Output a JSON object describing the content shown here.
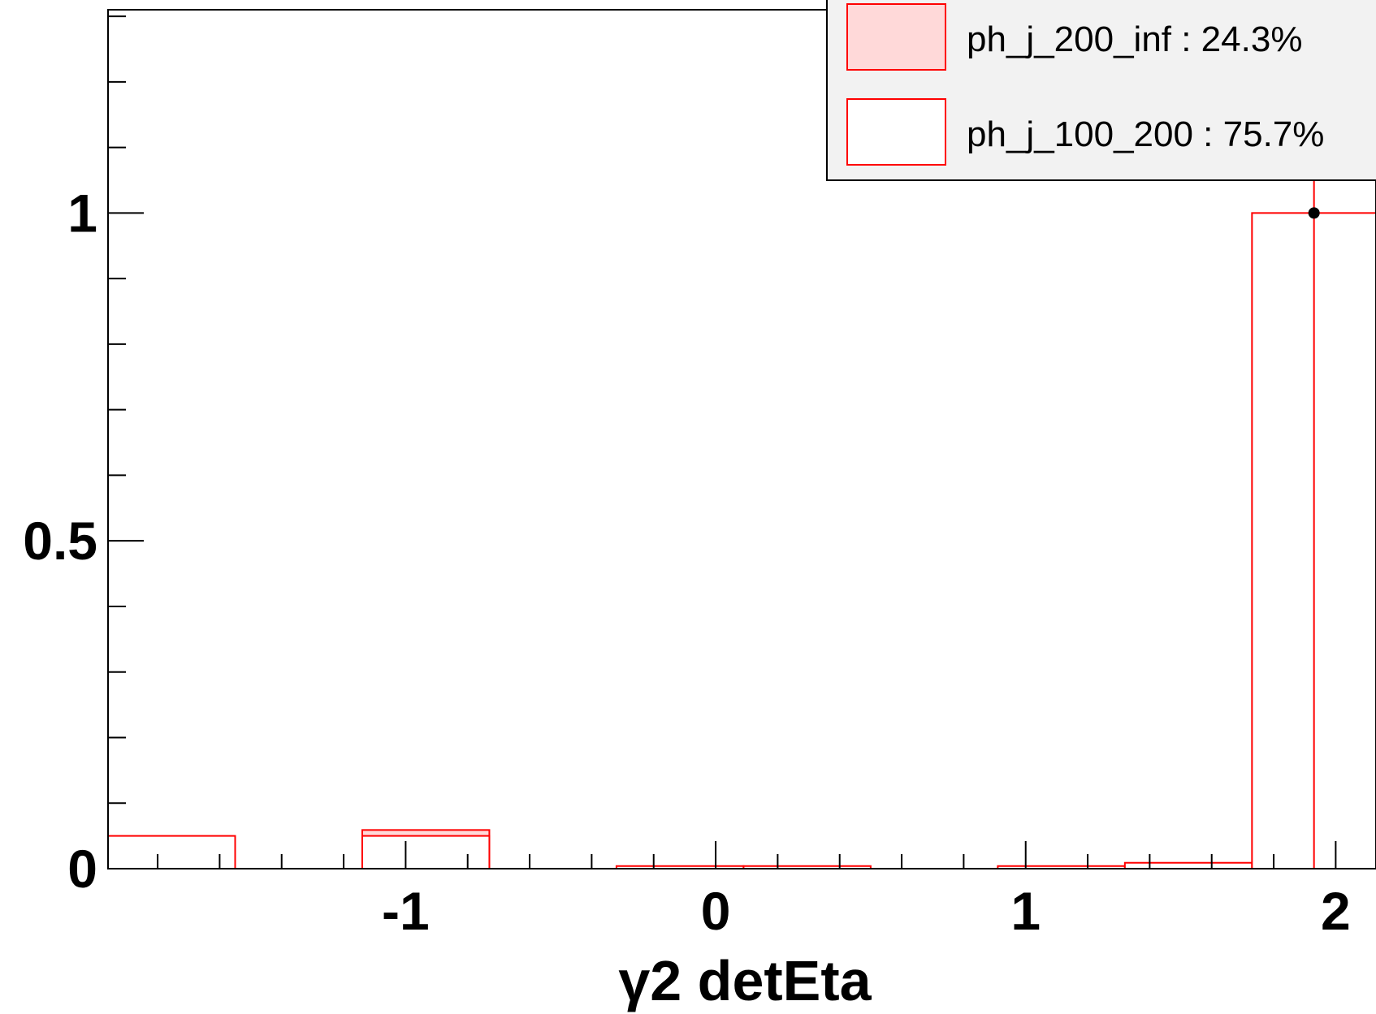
{
  "chart_data": {
    "type": "bar",
    "title": "",
    "xlabel": "γ2 detEta",
    "ylabel": "",
    "xlim": [
      -1.96,
      2.13
    ],
    "ylim": [
      0,
      1.31
    ],
    "x_ticks": [
      {
        "value": -1,
        "label": "-1"
      },
      {
        "value": 0,
        "label": "0"
      },
      {
        "value": 1,
        "label": "1"
      },
      {
        "value": 2,
        "label": "2"
      }
    ],
    "y_ticks": [
      {
        "value": 0,
        "label": "0"
      },
      {
        "value": 0.5,
        "label": "0.5"
      },
      {
        "value": 1,
        "label": "1"
      }
    ],
    "bin_edges": [
      -1.96,
      -1.55,
      -1.14,
      -0.73,
      -0.32,
      0.09,
      0.5,
      0.91,
      1.32,
      1.73,
      2.14
    ],
    "series": [
      {
        "name": "ph_j_200_inf : 24.3%",
        "style": "filled",
        "fill": "#ffd9d9",
        "stroke": "#ff0000",
        "values": [
          0.0,
          0.0,
          0.009,
          0.0,
          0.0,
          0.0,
          0.0,
          0.0,
          0.0,
          0.0
        ]
      },
      {
        "name": "ph_j_100_200 : 75.7%",
        "style": "outline",
        "fill": "#ffffff",
        "stroke": "#ff0000",
        "values": [
          0.05,
          0.0,
          0.05,
          0.0,
          0.004,
          0.004,
          0.0,
          0.004,
          0.009,
          1.0
        ]
      }
    ],
    "data_points": [
      {
        "x": 1.93,
        "y": 1.0
      }
    ],
    "spike": {
      "x": 1.93,
      "y": 1.31
    },
    "legend": {
      "position": "top-right"
    },
    "grid": false
  }
}
